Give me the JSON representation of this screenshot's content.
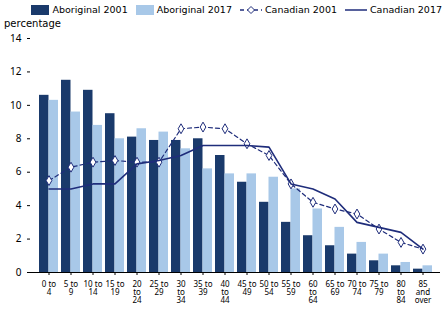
{
  "chart_data": {
    "type": "bar",
    "ylabel": "percentage",
    "categories": [
      "0 to\n4",
      "5 to\n9",
      "10 to\n14",
      "15 to\n19",
      "20\nto\n24",
      "25 to\n29",
      "30\nto\n34",
      "35 to\n39",
      "40\nto\n44",
      "45 to\n49",
      "50 to\n54",
      "55 to\n59",
      "60\nto\n64",
      "65 to\n69",
      "70 to\n74",
      "75 to\n79",
      "80\nto\n84",
      "85\nand\nover"
    ],
    "series": [
      {
        "name": "Aboriginal 2001",
        "type": "bar",
        "color": "#1a3a6b",
        "values": [
          10.6,
          11.5,
          10.9,
          9.5,
          8.1,
          7.9,
          7.9,
          8.0,
          7.0,
          5.4,
          4.2,
          3.0,
          2.2,
          1.6,
          1.1,
          0.7,
          0.4,
          0.2
        ]
      },
      {
        "name": "Aboriginal 2017",
        "type": "bar",
        "color": "#a8c8e8",
        "values": [
          10.3,
          9.6,
          8.8,
          8.0,
          8.6,
          8.4,
          7.4,
          6.2,
          5.9,
          5.9,
          5.7,
          5.0,
          3.8,
          2.7,
          1.8,
          1.1,
          0.6,
          0.4
        ]
      },
      {
        "name": "Canadian 2001",
        "type": "line",
        "color": "#1f2d7b",
        "line_style": "dashed",
        "marker": "diamond",
        "values": [
          5.5,
          6.3,
          6.6,
          6.7,
          6.6,
          6.6,
          8.6,
          8.7,
          8.6,
          7.7,
          7.0,
          5.3,
          4.2,
          3.8,
          3.5,
          2.6,
          1.8,
          1.4
        ]
      },
      {
        "name": "Canadian 2017",
        "type": "line",
        "color": "#1f2d7b",
        "line_style": "solid",
        "values": [
          5.0,
          5.0,
          5.3,
          5.3,
          6.5,
          6.7,
          7.0,
          7.6,
          7.6,
          7.6,
          7.5,
          5.3,
          5.0,
          4.4,
          3.0,
          2.7,
          2.4,
          1.4
        ]
      }
    ],
    "ylim": [
      0,
      14
    ],
    "yticks": [
      0,
      2,
      4,
      6,
      8,
      10,
      12,
      14
    ],
    "grid": false,
    "legend": "upper right"
  }
}
